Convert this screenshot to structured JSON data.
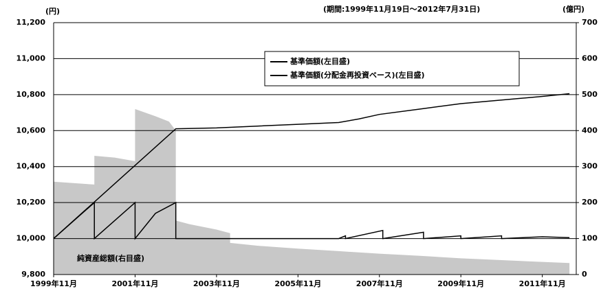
{
  "chart_data": {
    "type": "line",
    "unit_left": "(円)",
    "period": "(期間:1999年11月19日～2012年7月31日)",
    "unit_right": "(億円)",
    "annotation": "純資産総額(右目盛)",
    "xlim": [
      0,
      154
    ],
    "xticks": [
      {
        "value": 0,
        "label": "1999年11月"
      },
      {
        "value": 24,
        "label": "2001年11月"
      },
      {
        "value": 48,
        "label": "2003年11月"
      },
      {
        "value": 72,
        "label": "2005年11月"
      },
      {
        "value": 96,
        "label": "2007年11月"
      },
      {
        "value": 120,
        "label": "2009年11月"
      },
      {
        "value": 144,
        "label": "2011年11月"
      }
    ],
    "ylim": [
      9800,
      11200
    ],
    "yticks": [
      {
        "value": 9800,
        "label": "9,800"
      },
      {
        "value": 10000,
        "label": "10,000"
      },
      {
        "value": 10200,
        "label": "10,200"
      },
      {
        "value": 10400,
        "label": "10,400"
      },
      {
        "value": 10600,
        "label": "10,600"
      },
      {
        "value": 10800,
        "label": "10,800"
      },
      {
        "value": 11000,
        "label": "11,000"
      },
      {
        "value": 11200,
        "label": "11,200"
      }
    ],
    "y2lim": [
      0,
      700
    ],
    "y2ticks": [
      0,
      100,
      200,
      300,
      400,
      500,
      600,
      700
    ],
    "grid": true,
    "area": {
      "axis": "y2",
      "color": "#c8c8c8",
      "x": [
        0,
        12,
        12,
        18,
        24,
        24,
        30,
        34,
        36,
        36,
        40,
        48,
        52,
        52,
        60,
        72,
        84,
        96,
        108,
        120,
        132,
        144,
        152
      ],
      "values": [
        258,
        250,
        330,
        325,
        315,
        460,
        440,
        425,
        400,
        150,
        140,
        125,
        115,
        88,
        80,
        72,
        65,
        58,
        52,
        45,
        40,
        35,
        32
      ]
    },
    "series": [
      {
        "name": "基準価額(左目盛)",
        "color": "#000000",
        "x": [
          0,
          12,
          12,
          24,
          24,
          30,
          36,
          36,
          60,
          84,
          86,
          86,
          97,
          97,
          109,
          109,
          120,
          120,
          132,
          132,
          144,
          152
        ],
        "values": [
          10000,
          10200,
          10000,
          10200,
          10000,
          10140,
          10200,
          10000,
          10000,
          10000,
          10015,
          10000,
          10045,
          10000,
          10035,
          10000,
          10015,
          10000,
          10015,
          10000,
          10010,
          10005
        ]
      },
      {
        "name": "基準価額(分配金再投資ベース)(左目盛)",
        "color": "#000000",
        "x": [
          0,
          36,
          48,
          60,
          72,
          84,
          90,
          96,
          108,
          120,
          132,
          144,
          152
        ],
        "values": [
          10000,
          10610,
          10615,
          10625,
          10635,
          10645,
          10665,
          10690,
          10720,
          10750,
          10770,
          10790,
          10805
        ]
      }
    ]
  }
}
